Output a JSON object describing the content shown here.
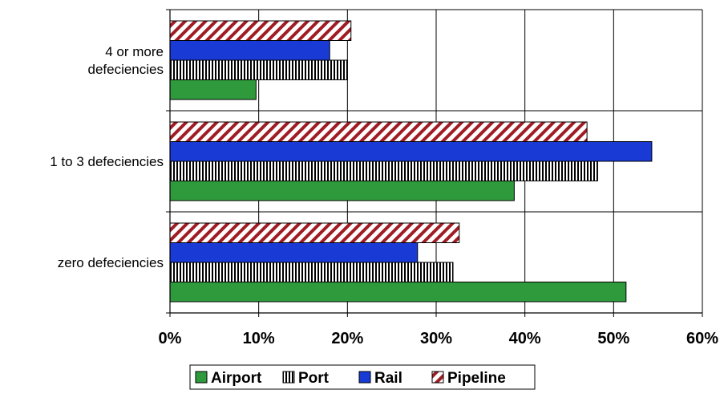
{
  "chart_data": {
    "type": "bar",
    "orientation": "horizontal",
    "categories": [
      "4 or more defeciencies",
      "1 to 3 defeciencies",
      "zero defeciencies"
    ],
    "category_lines": [
      [
        "4 or more",
        "defeciencies"
      ],
      [
        "1 to 3 defeciencies"
      ],
      [
        "zero defeciencies"
      ]
    ],
    "series": [
      {
        "name": "Airport",
        "values": [
          9.7,
          38.8,
          51.4
        ],
        "color": "#2e9a3c",
        "pattern": "solid"
      },
      {
        "name": "Port",
        "values": [
          20.0,
          48.2,
          31.9
        ],
        "color": "#000000",
        "pattern": "vertical-stripes"
      },
      {
        "name": "Rail",
        "values": [
          18.0,
          54.3,
          27.9
        ],
        "color": "#1a3ad6",
        "pattern": "solid"
      },
      {
        "name": "Pipeline",
        "values": [
          20.4,
          47.0,
          32.6
        ],
        "color": "#a01c24",
        "pattern": "diagonal-stripes"
      }
    ],
    "xlim": [
      0,
      60
    ],
    "xticks": [
      0,
      10,
      20,
      30,
      40,
      50,
      60
    ],
    "xtick_labels": [
      "0%",
      "10%",
      "20%",
      "30%",
      "40%",
      "50%",
      "60%"
    ],
    "grid": true,
    "legend_position": "bottom"
  }
}
